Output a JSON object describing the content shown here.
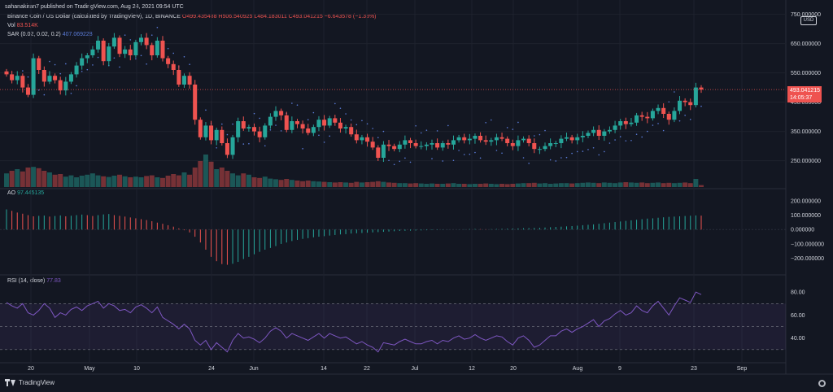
{
  "header": {
    "publisher": "sahanakiran7 published on TradingView.com, Aug 24, 2021 09:54 UTC",
    "symbol": "Binance Coin / US Dollar (calculated by TradingView), 1D, BINANCE",
    "ohlc": "O499.435488 H506.540925 L484.183011 C493.041215 −6.643578 (−1.33%)",
    "vol_label": "Vol",
    "vol_value": "83.514K",
    "sar_label": "SAR (0.02, 0.02, 0.2)",
    "sar_value": "407.069228",
    "ao_label": "AO",
    "ao_value": "97.445135",
    "rsi_label": "RSI (14, close)",
    "rsi_value": "77.83"
  },
  "price_axis": {
    "currency": "USD",
    "top_label": "750.000000",
    "labels": [
      "650.000000",
      "550.000000",
      "450.000000",
      "350.000000",
      "250.000000"
    ],
    "last_price": "493.041215",
    "countdown": "14:05:37"
  },
  "ao_axis": {
    "labels": [
      "200.000000",
      "100.000000",
      "0.000000",
      "−100.000000",
      "−200.000000"
    ]
  },
  "rsi_axis": {
    "labels": [
      "80.00",
      "60.00",
      "40.00"
    ]
  },
  "time_axis": {
    "labels": [
      "20",
      "May",
      "10",
      "24",
      "Jun",
      "14",
      "22",
      "Jul",
      "12",
      "20",
      "Aug",
      "9",
      "23",
      "Sep"
    ]
  },
  "branding": {
    "logo_text": "TradingView"
  },
  "colors": {
    "up": "#26a69a",
    "down": "#ef5350",
    "sar": "#5b7cd9",
    "rsi": "#7e57c2",
    "background": "#131722"
  },
  "chart_data": [
    {
      "type": "candlestick",
      "title": "Binance Coin / US Dollar, 1D",
      "ylim": [
        160,
        760
      ],
      "last_close": 493.041215,
      "closes": [
        545,
        525,
        540,
        500,
        475,
        600,
        560,
        520,
        540,
        525,
        490,
        520,
        545,
        575,
        600,
        610,
        630,
        660,
        590,
        640,
        670,
        615,
        630,
        610,
        655,
        670,
        645,
        610,
        660,
        600,
        580,
        560,
        510,
        540,
        510,
        390,
        330,
        370,
        320,
        355,
        310,
        270,
        330,
        385,
        360,
        365,
        350,
        330,
        370,
        400,
        420,
        405,
        355,
        385,
        375,
        360,
        345,
        365,
        390,
        370,
        395,
        380,
        360,
        365,
        340,
        320,
        330,
        315,
        295,
        260,
        305,
        300,
        290,
        305,
        320,
        310,
        300,
        300,
        305,
        310,
        295,
        310,
        305,
        320,
        330,
        320,
        325,
        335,
        320,
        315,
        320,
        330,
        325,
        310,
        300,
        320,
        325,
        310,
        290,
        290,
        300,
        310,
        310,
        325,
        330,
        320,
        330,
        335,
        345,
        355,
        335,
        350,
        355,
        370,
        385,
        375,
        380,
        405,
        400,
        395,
        420,
        430,
        410,
        390,
        420,
        455,
        450,
        440,
        500,
        493
      ]
    },
    {
      "type": "bar",
      "title": "Vol",
      "last_value": "83.514K",
      "values": [
        0.42,
        0.5,
        0.55,
        0.48,
        0.6,
        0.62,
        0.58,
        0.5,
        0.45,
        0.38,
        0.4,
        0.32,
        0.36,
        0.3,
        0.35,
        0.38,
        0.42,
        0.36,
        0.33,
        0.31,
        0.35,
        0.38,
        0.33,
        0.3,
        0.32,
        0.3,
        0.34,
        0.36,
        0.3,
        0.28,
        0.35,
        0.4,
        0.36,
        0.45,
        0.38,
        0.6,
        0.8,
        1.0,
        0.78,
        0.55,
        0.6,
        0.5,
        0.42,
        0.36,
        0.42,
        0.38,
        0.3,
        0.28,
        0.32,
        0.26,
        0.24,
        0.22,
        0.25,
        0.22,
        0.2,
        0.18,
        0.2,
        0.18,
        0.17,
        0.16,
        0.15,
        0.14,
        0.15,
        0.14,
        0.13,
        0.16,
        0.14,
        0.15,
        0.16,
        0.18,
        0.16,
        0.14,
        0.13,
        0.12,
        0.12,
        0.11,
        0.12,
        0.11,
        0.1,
        0.11,
        0.1,
        0.1,
        0.11,
        0.12,
        0.1,
        0.1,
        0.09,
        0.1,
        0.1,
        0.11,
        0.1,
        0.09,
        0.1,
        0.09,
        0.1,
        0.11,
        0.12,
        0.12,
        0.13,
        0.11,
        0.12,
        0.1,
        0.11,
        0.12,
        0.12,
        0.11,
        0.12,
        0.13,
        0.14,
        0.13,
        0.12,
        0.14,
        0.13,
        0.12,
        0.14,
        0.15,
        0.14,
        0.13,
        0.14,
        0.12,
        0.13,
        0.14,
        0.12,
        0.13,
        0.12,
        0.13,
        0.14,
        0.12,
        0.25,
        0.06
      ]
    },
    {
      "type": "histogram",
      "title": "AO",
      "ylim": [
        -270,
        250
      ],
      "last_value": 97.445135,
      "values": [
        140,
        130,
        118,
        110,
        100,
        92,
        95,
        97,
        90,
        94,
        98,
        92,
        96,
        100,
        104,
        100,
        94,
        100,
        105,
        108,
        100,
        95,
        90,
        84,
        78,
        72,
        66,
        58,
        48,
        40,
        30,
        20,
        8,
        -5,
        -20,
        -50,
        -90,
        -140,
        -190,
        -220,
        -240,
        -245,
        -238,
        -225,
        -205,
        -190,
        -172,
        -155,
        -140,
        -128,
        -115,
        -100,
        -90,
        -80,
        -72,
        -65,
        -60,
        -54,
        -50,
        -46,
        -42,
        -38,
        -34,
        -32,
        -28,
        -26,
        -24,
        -22,
        -20,
        -18,
        -16,
        -14,
        -12,
        -10,
        -9,
        -8,
        -7,
        -6,
        -5,
        -4,
        -3,
        -2,
        -1,
        0,
        1,
        2,
        3,
        4,
        3,
        2,
        3,
        4,
        5,
        6,
        7,
        8,
        9,
        10,
        11,
        12,
        14,
        16,
        18,
        20,
        22,
        24,
        27,
        30,
        33,
        36,
        40,
        44,
        48,
        52,
        56,
        60,
        64,
        68,
        72,
        76,
        78,
        82,
        85,
        88,
        90,
        92,
        94,
        96,
        98,
        97
      ]
    },
    {
      "type": "line",
      "title": "RSI (14, close)",
      "ylim": [
        20,
        90
      ],
      "last_value": 77.83,
      "values": [
        71,
        68,
        66,
        70,
        62,
        60,
        64,
        70,
        66,
        58,
        62,
        60,
        65,
        67,
        64,
        68,
        70,
        72,
        66,
        70,
        68,
        64,
        65,
        62,
        67,
        69,
        66,
        62,
        67,
        58,
        55,
        52,
        48,
        52,
        48,
        38,
        34,
        38,
        30,
        36,
        32,
        28,
        38,
        44,
        40,
        41,
        39,
        36,
        40,
        46,
        49,
        46,
        40,
        44,
        42,
        40,
        38,
        41,
        44,
        40,
        44,
        42,
        40,
        41,
        38,
        35,
        37,
        34,
        32,
        28,
        36,
        35,
        34,
        37,
        39,
        37,
        35,
        35,
        37,
        38,
        35,
        38,
        37,
        40,
        42,
        39,
        40,
        43,
        40,
        38,
        40,
        42,
        41,
        37,
        34,
        40,
        42,
        38,
        32,
        34,
        38,
        42,
        42,
        46,
        48,
        45,
        48,
        50,
        53,
        56,
        50,
        55,
        57,
        61,
        64,
        60,
        62,
        68,
        64,
        62,
        68,
        72,
        66,
        60,
        68,
        75,
        73,
        71,
        80,
        77.83
      ]
    }
  ]
}
